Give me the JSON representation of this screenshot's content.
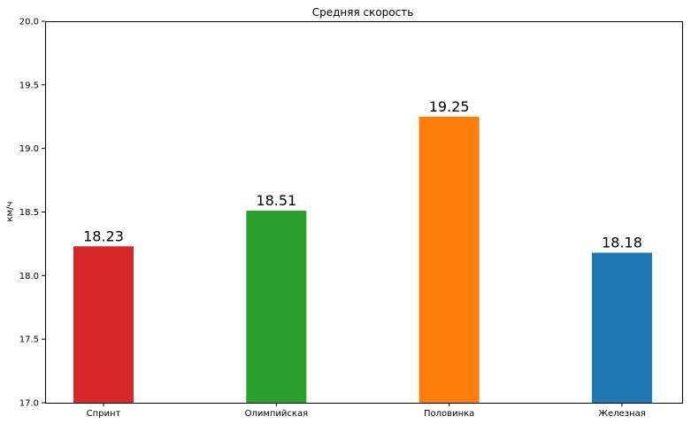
{
  "chart_data": {
    "type": "bar",
    "title": "Средняя скорость",
    "xlabel": "",
    "ylabel": "км/ч",
    "categories": [
      "Спринт",
      "Олимпийская",
      "Половинка",
      "Железная"
    ],
    "values": [
      18.23,
      18.51,
      19.25,
      18.18
    ],
    "value_labels": [
      "18.23",
      "18.51",
      "19.25",
      "18.18"
    ],
    "colors": [
      "#d62728",
      "#2ca02c",
      "#ff7f0e",
      "#1f77b4"
    ],
    "ylim": [
      17.0,
      20.0
    ],
    "yticks": [
      17.0,
      17.5,
      18.0,
      18.5,
      19.0,
      19.5,
      20.0
    ],
    "ytick_labels": [
      "17.0",
      "17.5",
      "18.0",
      "18.5",
      "19.0",
      "19.5",
      "20.0"
    ],
    "grid": false,
    "legend": "none"
  }
}
